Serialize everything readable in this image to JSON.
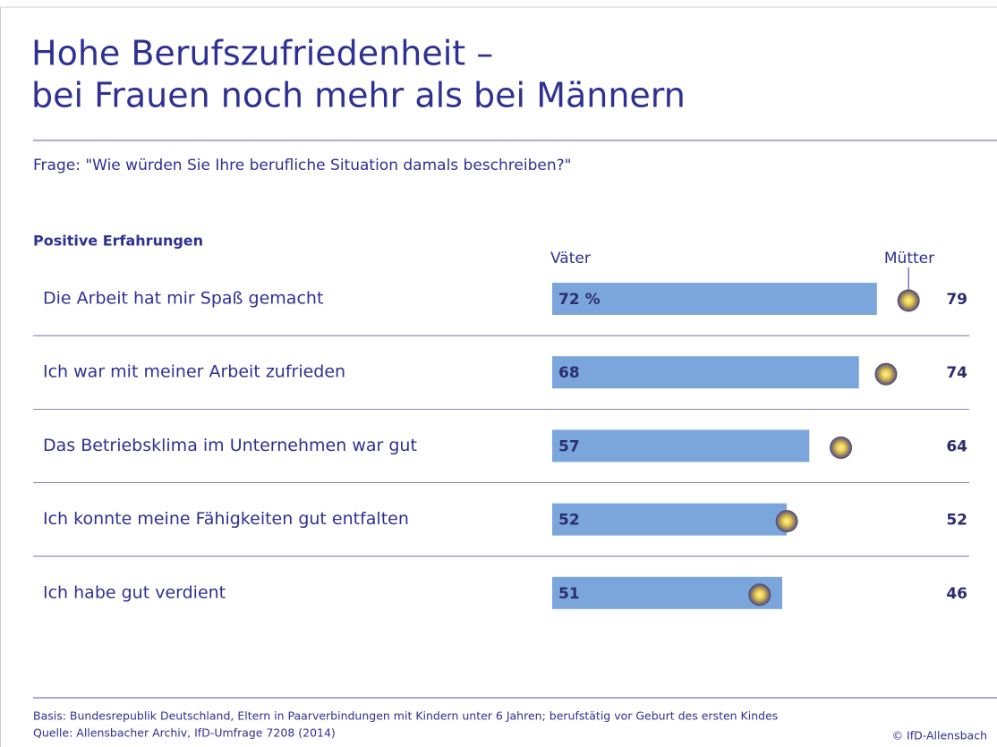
{
  "chart_data": {
    "type": "bar_dot",
    "title_lines": [
      "Hohe Berufszufriedenheit –",
      "bei Frauen noch mehr als bei Männern"
    ],
    "question": "Frage:  \"Wie würden Sie Ihre berufliche Situation damals beschreiben?\"",
    "section": "Positive Erfahrungen",
    "categories": [
      "Die Arbeit hat mir Spaß gemacht",
      "Ich war mit meiner Arbeit zufrieden",
      "Das Betriebsklima im Unternehmen war gut",
      "Ich konnte meine Fähigkeiten gut entfalten",
      "Ich habe gut verdient"
    ],
    "series": [
      {
        "name": "Väter",
        "color": "#7ba6dc",
        "values": [
          72,
          68,
          57,
          52,
          51
        ],
        "value_labels": [
          "72 %",
          "68",
          "57",
          "52",
          "51"
        ]
      },
      {
        "name": "Mütter",
        "color": "#2e2f86",
        "values": [
          79,
          74,
          64,
          52,
          46
        ]
      }
    ],
    "xlim": [
      0,
      100
    ],
    "footnotes": [
      "Basis: Bundesrepublik Deutschland, Eltern in Paarverbindungen mit Kindern unter 6 Jahren; berufstätig vor Geburt des ersten Kindes",
      "Quelle: Allensbacher Archiv, IfD-Umfrage 7208 (2014)"
    ],
    "copyright": "© IfD-Allensbach"
  }
}
